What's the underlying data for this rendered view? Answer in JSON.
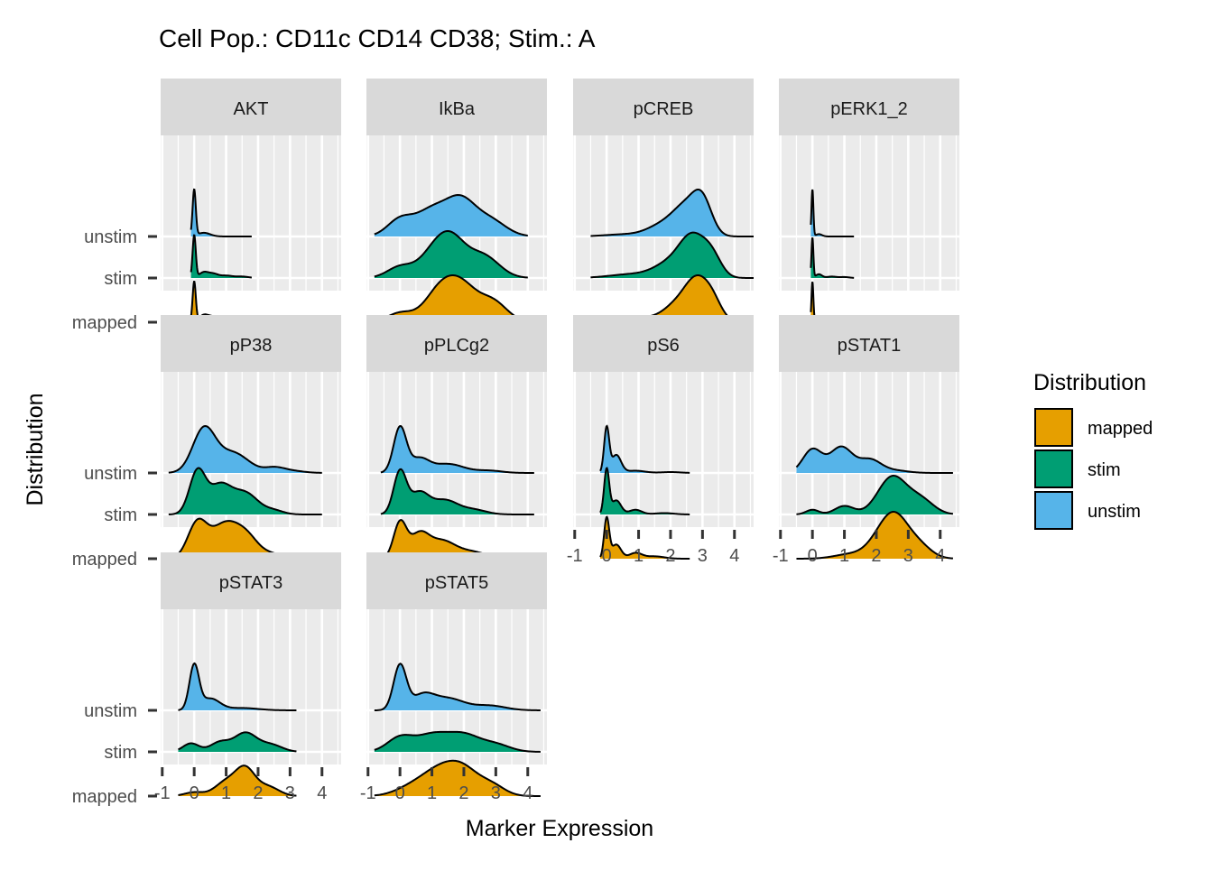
{
  "chart_data": {
    "type": "ridgeline",
    "title": "Cell Pop.: CD11c CD14 CD38; Stim.: A",
    "xlabel": "Marker Expression",
    "ylabel": "Distribution",
    "x_ticks": [
      -1,
      0,
      1,
      2,
      3,
      4
    ],
    "x_tick_labels": [
      "-1",
      "0",
      "1",
      "2",
      "3",
      "4"
    ],
    "xlim": [
      -1.05,
      4.6
    ],
    "y_categories": [
      "unstim",
      "stim",
      "mapped"
    ],
    "legend": {
      "title": "Distribution",
      "position": "right",
      "entries": [
        {
          "name": "mapped",
          "color": "#E69F00"
        },
        {
          "name": "stim",
          "color": "#009E73"
        },
        {
          "name": "unstim",
          "color": "#56B4E9"
        }
      ]
    },
    "grid": true,
    "facets": [
      {
        "label": "AKT",
        "curves": {
          "unstim": {
            "range": [
              -0.1,
              1.8
            ],
            "peaks": [
              [
                0.0,
                0.05,
                1.0
              ],
              [
                0.3,
                0.2,
                0.08
              ]
            ]
          },
          "stim": {
            "range": [
              -0.1,
              1.8
            ],
            "peaks": [
              [
                0.0,
                0.05,
                0.9
              ],
              [
                0.3,
                0.15,
                0.12
              ],
              [
                0.6,
                0.15,
                0.08
              ],
              [
                1.0,
                0.2,
                0.05
              ],
              [
                1.5,
                0.2,
                0.03
              ]
            ]
          },
          "mapped": {
            "range": [
              -0.1,
              1.8
            ],
            "peaks": [
              [
                0.0,
                0.05,
                0.85
              ],
              [
                0.3,
                0.15,
                0.15
              ],
              [
                0.6,
                0.15,
                0.1
              ],
              [
                1.0,
                0.2,
                0.05
              ],
              [
                1.5,
                0.2,
                0.04
              ]
            ]
          }
        }
      },
      {
        "label": "IkBa",
        "curves": {
          "unstim": {
            "range": [
              -0.8,
              4.0
            ],
            "peaks": [
              [
                0.0,
                0.4,
                0.35
              ],
              [
                1.0,
                0.5,
                0.55
              ],
              [
                1.9,
                0.45,
                0.7
              ],
              [
                2.8,
                0.5,
                0.35
              ]
            ]
          },
          "stim": {
            "range": [
              -0.8,
              4.0
            ],
            "peaks": [
              [
                0.0,
                0.4,
                0.25
              ],
              [
                1.0,
                0.45,
                0.45
              ],
              [
                1.6,
                0.45,
                0.8
              ],
              [
                2.6,
                0.5,
                0.5
              ]
            ]
          },
          "mapped": {
            "range": [
              -0.8,
              4.6
            ],
            "peaks": [
              [
                0.0,
                0.4,
                0.2
              ],
              [
                1.3,
                0.5,
                0.75
              ],
              [
                2.0,
                0.45,
                0.6
              ],
              [
                2.9,
                0.45,
                0.45
              ]
            ]
          }
        }
      },
      {
        "label": "pCREB",
        "curves": {
          "unstim": {
            "range": [
              -0.5,
              4.6
            ],
            "peaks": [
              [
                0.5,
                0.6,
                0.05
              ],
              [
                1.8,
                0.5,
                0.3
              ],
              [
                2.5,
                0.4,
                0.65
              ],
              [
                3.0,
                0.3,
                0.8
              ]
            ]
          },
          "stim": {
            "range": [
              -0.5,
              4.6
            ],
            "peaks": [
              [
                0.8,
                0.7,
                0.08
              ],
              [
                2.0,
                0.5,
                0.3
              ],
              [
                2.7,
                0.4,
                0.8
              ],
              [
                3.3,
                0.3,
                0.4
              ]
            ]
          },
          "mapped": {
            "range": [
              -0.5,
              4.6
            ],
            "peaks": [
              [
                1.2,
                0.6,
                0.1
              ],
              [
                2.2,
                0.4,
                0.35
              ],
              [
                2.8,
                0.35,
                0.8
              ],
              [
                3.3,
                0.3,
                0.45
              ]
            ]
          }
        }
      },
      {
        "label": "pERK1_2",
        "curves": {
          "unstim": {
            "range": [
              -0.05,
              1.3
            ],
            "peaks": [
              [
                0.0,
                0.03,
                1.0
              ],
              [
                0.2,
                0.1,
                0.05
              ]
            ]
          },
          "stim": {
            "range": [
              -0.05,
              1.3
            ],
            "peaks": [
              [
                0.0,
                0.03,
                0.85
              ],
              [
                0.2,
                0.1,
                0.08
              ],
              [
                0.6,
                0.15,
                0.03
              ],
              [
                1.0,
                0.15,
                0.02
              ]
            ]
          },
          "mapped": {
            "range": [
              -0.05,
              1.3
            ],
            "peaks": [
              [
                0.0,
                0.03,
                0.85
              ],
              [
                0.2,
                0.1,
                0.08
              ],
              [
                0.5,
                0.15,
                0.03
              ],
              [
                1.0,
                0.15,
                0.02
              ]
            ]
          }
        }
      },
      {
        "label": "pP38",
        "curves": {
          "unstim": {
            "range": [
              -0.8,
              4.0
            ],
            "peaks": [
              [
                0.3,
                0.35,
                0.95
              ],
              [
                1.2,
                0.5,
                0.45
              ],
              [
                2.5,
                0.3,
                0.1
              ],
              [
                3.0,
                0.4,
                0.05
              ]
            ]
          },
          "stim": {
            "range": [
              -0.8,
              4.0
            ],
            "peaks": [
              [
                0.1,
                0.25,
                0.9
              ],
              [
                0.8,
                0.35,
                0.6
              ],
              [
                1.6,
                0.4,
                0.45
              ],
              [
                2.5,
                0.3,
                0.08
              ]
            ]
          },
          "mapped": {
            "range": [
              -0.8,
              4.0
            ],
            "peaks": [
              [
                0.1,
                0.3,
                0.75
              ],
              [
                0.9,
                0.4,
                0.65
              ],
              [
                1.6,
                0.4,
                0.5
              ],
              [
                2.5,
                0.3,
                0.08
              ]
            ]
          }
        }
      },
      {
        "label": "pPLCg2",
        "curves": {
          "unstim": {
            "range": [
              -0.6,
              4.2
            ],
            "peaks": [
              [
                0.0,
                0.2,
                1.0
              ],
              [
                0.6,
                0.3,
                0.3
              ],
              [
                1.5,
                0.5,
                0.2
              ],
              [
                2.8,
                0.4,
                0.05
              ]
            ]
          },
          "stim": {
            "range": [
              -0.6,
              4.2
            ],
            "peaks": [
              [
                0.0,
                0.2,
                0.9
              ],
              [
                0.6,
                0.3,
                0.45
              ],
              [
                1.4,
                0.4,
                0.3
              ],
              [
                2.3,
                0.4,
                0.1
              ]
            ]
          },
          "mapped": {
            "range": [
              -0.6,
              4.2
            ],
            "peaks": [
              [
                0.0,
                0.2,
                0.75
              ],
              [
                0.6,
                0.3,
                0.5
              ],
              [
                1.3,
                0.4,
                0.35
              ],
              [
                2.2,
                0.5,
                0.15
              ]
            ]
          }
        }
      },
      {
        "label": "pS6",
        "curves": {
          "unstim": {
            "range": [
              -0.2,
              2.6
            ],
            "peaks": [
              [
                0.0,
                0.08,
                1.0
              ],
              [
                0.3,
                0.15,
                0.4
              ],
              [
                0.9,
                0.3,
                0.05
              ],
              [
                2.0,
                0.3,
                0.02
              ]
            ]
          },
          "stim": {
            "range": [
              -0.2,
              2.6
            ],
            "peaks": [
              [
                0.0,
                0.08,
                0.95
              ],
              [
                0.3,
                0.15,
                0.3
              ],
              [
                0.9,
                0.2,
                0.1
              ],
              [
                1.8,
                0.3,
                0.03
              ]
            ]
          },
          "mapped": {
            "range": [
              -0.2,
              2.6
            ],
            "peaks": [
              [
                0.0,
                0.08,
                0.85
              ],
              [
                0.3,
                0.15,
                0.3
              ],
              [
                0.9,
                0.2,
                0.12
              ],
              [
                1.5,
                0.3,
                0.05
              ]
            ]
          }
        }
      },
      {
        "label": "pSTAT1",
        "curves": {
          "unstim": {
            "range": [
              -0.5,
              4.4
            ],
            "peaks": [
              [
                0.0,
                0.3,
                0.5
              ],
              [
                0.9,
                0.35,
                0.55
              ],
              [
                1.8,
                0.35,
                0.28
              ],
              [
                2.6,
                0.4,
                0.05
              ]
            ]
          },
          "stim": {
            "range": [
              -0.5,
              4.4
            ],
            "peaks": [
              [
                0.0,
                0.2,
                0.1
              ],
              [
                1.0,
                0.3,
                0.18
              ],
              [
                2.5,
                0.45,
                0.8
              ],
              [
                3.4,
                0.4,
                0.3
              ]
            ]
          },
          "mapped": {
            "range": [
              -0.5,
              4.4
            ],
            "peaks": [
              [
                1.2,
                0.5,
                0.1
              ],
              [
                2.1,
                0.4,
                0.35
              ],
              [
                2.6,
                0.4,
                0.8
              ],
              [
                3.3,
                0.4,
                0.3
              ]
            ]
          }
        }
      },
      {
        "label": "pSTAT3",
        "curves": {
          "unstim": {
            "range": [
              -0.5,
              3.2
            ],
            "peaks": [
              [
                0.0,
                0.15,
                0.95
              ],
              [
                0.5,
                0.3,
                0.25
              ],
              [
                1.5,
                0.5,
                0.05
              ]
            ]
          },
          "stim": {
            "range": [
              -0.5,
              3.2
            ],
            "peaks": [
              [
                -0.1,
                0.25,
                0.18
              ],
              [
                0.8,
                0.3,
                0.2
              ],
              [
                1.6,
                0.35,
                0.4
              ],
              [
                2.4,
                0.35,
                0.15
              ]
            ]
          },
          "mapped": {
            "range": [
              -0.5,
              3.2
            ],
            "peaks": [
              [
                0.0,
                0.3,
                0.08
              ],
              [
                1.0,
                0.35,
                0.3
              ],
              [
                1.6,
                0.3,
                0.55
              ],
              [
                2.3,
                0.35,
                0.2
              ]
            ]
          }
        }
      },
      {
        "label": "pSTAT5",
        "curves": {
          "unstim": {
            "range": [
              -0.8,
              4.4
            ],
            "peaks": [
              [
                0.0,
                0.2,
                0.95
              ],
              [
                0.7,
                0.35,
                0.3
              ],
              [
                1.5,
                0.5,
                0.25
              ],
              [
                2.8,
                0.5,
                0.1
              ]
            ]
          },
          "stim": {
            "range": [
              -0.8,
              4.4
            ],
            "peaks": [
              [
                0.0,
                0.4,
                0.3
              ],
              [
                1.0,
                0.5,
                0.35
              ],
              [
                2.0,
                0.5,
                0.35
              ],
              [
                3.0,
                0.45,
                0.15
              ]
            ]
          },
          "mapped": {
            "range": [
              -0.8,
              4.4
            ],
            "peaks": [
              [
                0.3,
                0.5,
                0.15
              ],
              [
                1.2,
                0.55,
                0.5
              ],
              [
                2.0,
                0.5,
                0.5
              ],
              [
                2.9,
                0.4,
                0.2
              ]
            ]
          }
        }
      }
    ]
  }
}
